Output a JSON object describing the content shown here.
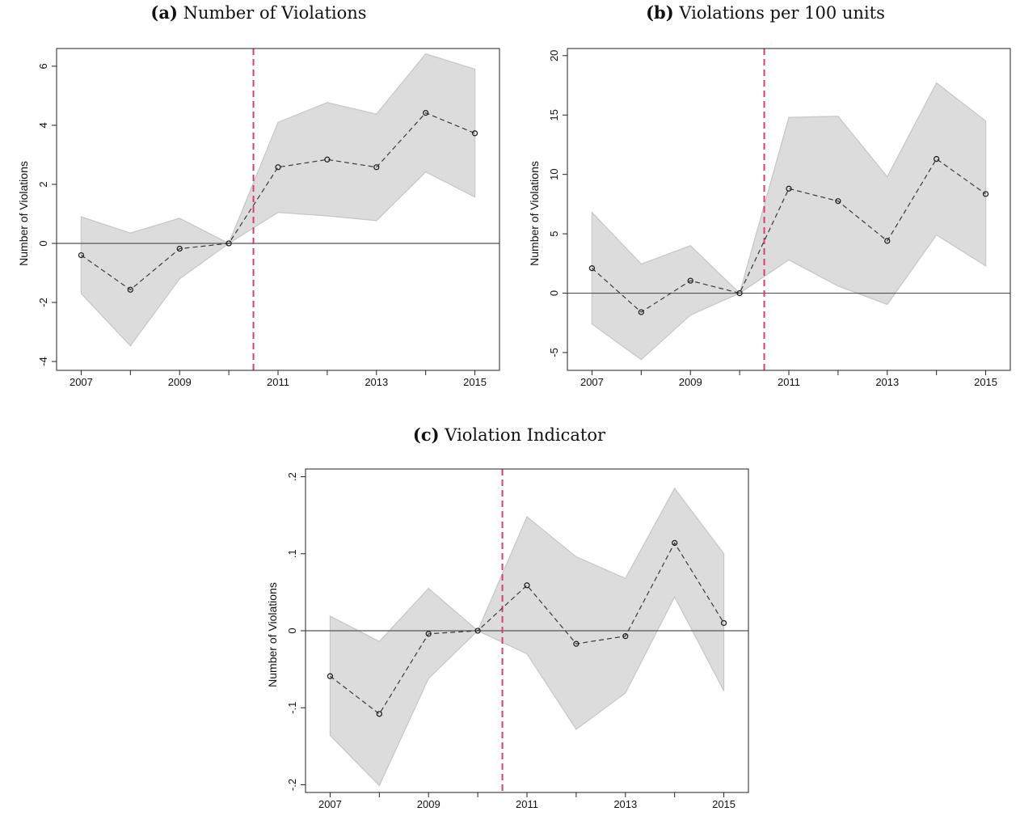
{
  "panels": [
    {
      "letter": "(a)",
      "title": "Number of Violations"
    },
    {
      "letter": "(b)",
      "title": "Violations per 100 units"
    },
    {
      "letter": "(c)",
      "title": "Violation Indicator"
    }
  ],
  "chart_data": [
    {
      "type": "line",
      "title": "(a) Number of Violations",
      "ylabel": "Number of Violations",
      "xlabel": "",
      "x": [
        2007,
        2008,
        2009,
        2010,
        2011,
        2012,
        2013,
        2014,
        2015
      ],
      "xticks": [
        2007,
        2009,
        2011,
        2013,
        2015
      ],
      "xlim": [
        2006.5,
        2015.5
      ],
      "yticks": [
        -4,
        -2,
        0,
        2,
        4,
        6
      ],
      "ytick_labels": [
        "-4",
        "-2",
        "0",
        "2",
        "4",
        "6"
      ],
      "ylim": [
        -4.3,
        6.6
      ],
      "series": [
        {
          "values": [
            -0.4,
            -1.57,
            -0.18,
            0,
            2.58,
            2.84,
            2.58,
            4.42,
            3.73
          ]
        },
        {
          "values": [
            0.9,
            0.35,
            0.85,
            0,
            4.1,
            4.77,
            4.38,
            6.42,
            5.9
          ]
        },
        {
          "values": [
            -1.7,
            -3.47,
            -1.2,
            0,
            1.05,
            0.93,
            0.77,
            2.42,
            1.57
          ]
        }
      ],
      "treatment_line_x": 2010.5,
      "grid": false
    },
    {
      "type": "line",
      "title": "(b) Violations per 100 units",
      "ylabel": "Number of Violations",
      "xlabel": "",
      "x": [
        2007,
        2008,
        2009,
        2010,
        2011,
        2012,
        2013,
        2014,
        2015
      ],
      "xticks": [
        2007,
        2009,
        2011,
        2013,
        2015
      ],
      "xlim": [
        2006.5,
        2015.5
      ],
      "yticks": [
        -5,
        0,
        5,
        10,
        15,
        20
      ],
      "ytick_labels": [
        "-5",
        "0",
        "5",
        "10",
        "15",
        "20"
      ],
      "ylim": [
        -6.5,
        20.6
      ],
      "series": [
        {
          "values": [
            2.1,
            -1.6,
            1.05,
            0,
            8.8,
            7.75,
            4.4,
            11.3,
            8.35
          ]
        },
        {
          "values": [
            6.8,
            2.45,
            4.0,
            0,
            14.8,
            14.9,
            9.8,
            17.7,
            14.5
          ]
        },
        {
          "values": [
            -2.6,
            -5.6,
            -1.85,
            0,
            2.8,
            0.6,
            -0.95,
            4.9,
            2.3
          ]
        }
      ],
      "treatment_line_x": 2010.5,
      "grid": false
    },
    {
      "type": "line",
      "title": "(c) Violation Indicator",
      "ylabel": "Number of Violations",
      "xlabel": "",
      "x": [
        2007,
        2008,
        2009,
        2010,
        2011,
        2012,
        2013,
        2014,
        2015
      ],
      "xticks": [
        2007,
        2009,
        2011,
        2013,
        2015
      ],
      "xlim": [
        2006.5,
        2015.5
      ],
      "yticks": [
        -0.2,
        -0.1,
        0,
        0.1,
        0.2
      ],
      "ytick_labels": [
        "-.2",
        "-.1",
        "0",
        ".1",
        ".2"
      ],
      "ylim": [
        -0.21,
        0.21
      ],
      "series": [
        {
          "values": [
            -0.059,
            -0.108,
            -0.004,
            0,
            0.059,
            -0.017,
            -0.007,
            0.114,
            0.01
          ]
        },
        {
          "values": [
            0.019,
            -0.014,
            0.055,
            0,
            0.148,
            0.096,
            0.068,
            0.185,
            0.1
          ]
        },
        {
          "values": [
            -0.136,
            -0.201,
            -0.062,
            0,
            -0.03,
            -0.128,
            -0.081,
            0.044,
            -0.078
          ]
        }
      ],
      "treatment_line_x": 2010.5,
      "grid": false
    }
  ],
  "colors": {
    "band": "#dcdcdc",
    "band_edge": "#c6c6c6",
    "line": "#3a3a3a",
    "treatment_line": "#d63f6e",
    "axis": "#222222"
  }
}
